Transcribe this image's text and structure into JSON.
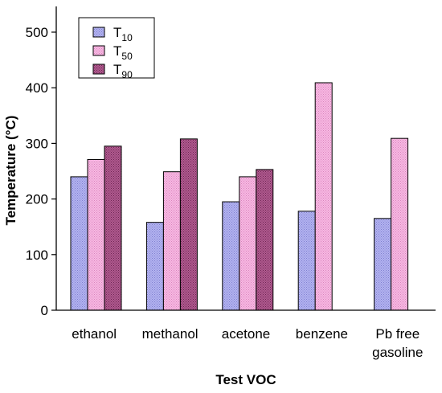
{
  "chart_data": {
    "type": "bar",
    "title": "",
    "xlabel": "Test VOC",
    "ylabel": "Temperature (°C)",
    "ylim": [
      0,
      550
    ],
    "yticks": [
      0,
      100,
      200,
      300,
      400,
      500
    ],
    "grid": false,
    "legend_position": "top-left",
    "categories": [
      {
        "lines": [
          "ethanol"
        ]
      },
      {
        "lines": [
          "methanol"
        ]
      },
      {
        "lines": [
          "acetone"
        ]
      },
      {
        "lines": [
          "benzene"
        ]
      },
      {
        "lines": [
          "Pb free",
          "gasoline"
        ]
      }
    ],
    "series": [
      {
        "name": "T10",
        "label_main": "T",
        "label_sub": "10",
        "color": "#b3b3f0",
        "dot": "#7f7fd0",
        "values": [
          240,
          158,
          195,
          178,
          165
        ]
      },
      {
        "name": "T50",
        "label_main": "T",
        "label_sub": "50",
        "color": "#f7b8e2",
        "dot": "#d985bd",
        "values": [
          271,
          249,
          240,
          409,
          309
        ]
      },
      {
        "name": "T90",
        "label_main": "T",
        "label_sub": "90",
        "color": "#b05a8f",
        "dot": "#6e2553",
        "values": [
          295,
          308,
          253,
          null,
          null
        ]
      }
    ]
  }
}
